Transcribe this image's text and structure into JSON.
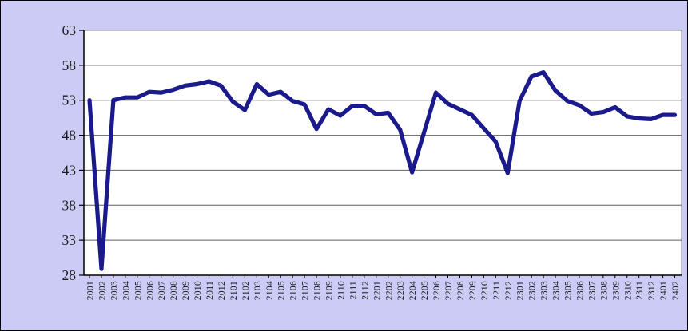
{
  "chart_data": {
    "type": "line",
    "title": "",
    "xlabel": "",
    "ylabel": "",
    "categories": [
      "2001",
      "2002",
      "2003",
      "2004",
      "2005",
      "2006",
      "2007",
      "2008",
      "2009",
      "2010",
      "2011",
      "2012",
      "2101",
      "2102",
      "2103",
      "2104",
      "2105",
      "2106",
      "2107",
      "2108",
      "2109",
      "2110",
      "2111",
      "2112",
      "2201",
      "2202",
      "2203",
      "2204",
      "2205",
      "2206",
      "2207",
      "2208",
      "2209",
      "2210",
      "2211",
      "2212",
      "2301",
      "2302",
      "2303",
      "2304",
      "2305",
      "2306",
      "2307",
      "2308",
      "2309",
      "2310",
      "2311",
      "2312",
      "2401",
      "2402"
    ],
    "values": [
      53.0,
      28.9,
      53.0,
      53.4,
      53.4,
      54.2,
      54.1,
      54.5,
      55.1,
      55.3,
      55.7,
      55.1,
      52.8,
      51.6,
      55.3,
      53.8,
      54.2,
      52.9,
      52.4,
      48.9,
      51.7,
      50.8,
      52.2,
      52.2,
      51.0,
      51.2,
      48.8,
      42.7,
      48.4,
      54.1,
      52.5,
      51.7,
      50.9,
      49.0,
      47.1,
      42.6,
      52.9,
      56.4,
      57.0,
      54.4,
      52.9,
      52.3,
      51.1,
      51.3,
      52.0,
      50.7,
      50.4,
      50.3,
      50.9,
      50.9
    ],
    "ylim": [
      28,
      63
    ],
    "yticks": [
      28,
      33,
      38,
      43,
      48,
      53,
      58,
      63
    ],
    "ytick_labels": [
      "28",
      "33",
      "38",
      "43",
      "48",
      "53",
      "58",
      "63"
    ],
    "grid": true,
    "legend": "none",
    "series_count": 1,
    "colors": {
      "background": "#CBCBF5",
      "plot_background": "#FFFFFF",
      "plot_border": "#808080",
      "gridline": "#5F5F5F",
      "axis": "#000000",
      "line": "#1A1A8C",
      "tick_text": "#1A1A1A"
    }
  }
}
